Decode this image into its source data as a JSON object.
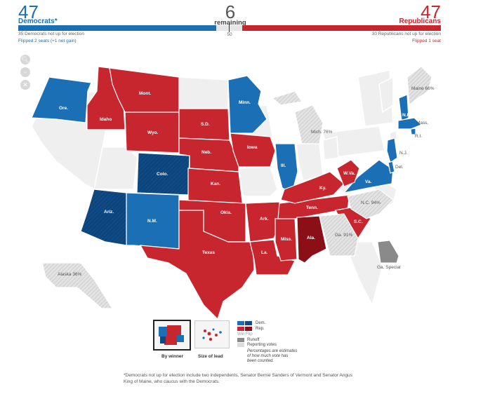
{
  "header": {
    "dem_count": "47",
    "dem_label": "Democrats*",
    "remaining_count": "6",
    "remaining_label": "remaining",
    "rep_count": "47",
    "rep_label": "Republicans",
    "dem_note": "35 Democrats not up for election",
    "rep_note": "30 Republicans not up for election",
    "midpoint": "50",
    "dem_flip": "Flipped 2 seats (+1 net gain)",
    "rep_flip": "Flipped 1 seat"
  },
  "colors": {
    "dem": "#1a6fb5",
    "dem_flip": "#0f4a85",
    "rep": "#c8262f",
    "rep_flip": "#8a0f16",
    "reporting": "#dcdcdc",
    "no_race": "#efefef",
    "runoff": "#8a8a8a"
  },
  "zoom_icons": [
    "zoom-in-icon",
    "zoom-out-icon",
    "reset-icon"
  ],
  "states": [
    {
      "id": "ore",
      "label": "Ore.",
      "status": "dem"
    },
    {
      "id": "idaho",
      "label": "Idaho",
      "status": "rep"
    },
    {
      "id": "mont",
      "label": "Mont.",
      "status": "rep"
    },
    {
      "id": "wyo",
      "label": "Wyo.",
      "status": "rep"
    },
    {
      "id": "sd",
      "label": "S.D.",
      "status": "rep"
    },
    {
      "id": "neb",
      "label": "Neb.",
      "status": "rep"
    },
    {
      "id": "minn",
      "label": "Minn.",
      "status": "dem"
    },
    {
      "id": "iowa",
      "label": "Iowa",
      "status": "rep"
    },
    {
      "id": "ill",
      "label": "Ill.",
      "status": "dem"
    },
    {
      "id": "colo",
      "label": "Colo.",
      "status": "dem_flip"
    },
    {
      "id": "kan",
      "label": "Kan.",
      "status": "rep"
    },
    {
      "id": "ariz",
      "label": "Ariz.",
      "status": "dem_flip"
    },
    {
      "id": "nm",
      "label": "N.M.",
      "status": "dem"
    },
    {
      "id": "okla",
      "label": "Okla.",
      "status": "rep"
    },
    {
      "id": "texas",
      "label": "Texas",
      "status": "rep"
    },
    {
      "id": "ark",
      "label": "Ark.",
      "status": "rep"
    },
    {
      "id": "la",
      "label": "La.",
      "status": "rep"
    },
    {
      "id": "miss",
      "label": "Miss.",
      "status": "rep"
    },
    {
      "id": "ala",
      "label": "Ala.",
      "status": "rep_flip"
    },
    {
      "id": "tenn",
      "label": "Tenn.",
      "status": "rep"
    },
    {
      "id": "ky",
      "label": "Ky.",
      "status": "rep"
    },
    {
      "id": "wva",
      "label": "W.Va.",
      "status": "rep"
    },
    {
      "id": "va",
      "label": "Va.",
      "status": "dem"
    },
    {
      "id": "sc",
      "label": "S.C.",
      "status": "rep"
    },
    {
      "id": "nc",
      "label": "N.C. 94%",
      "status": "reporting"
    },
    {
      "id": "ga",
      "label": "Ga. 91%",
      "status": "reporting"
    },
    {
      "id": "ga_special",
      "label": "Ga. Special",
      "status": "runoff"
    },
    {
      "id": "mich",
      "label": "Mich. 76%",
      "status": "reporting"
    },
    {
      "id": "maine",
      "label": "Maine 66%",
      "status": "reporting"
    },
    {
      "id": "nh",
      "label": "N.H.",
      "status": "dem"
    },
    {
      "id": "mass",
      "label": "Mass.",
      "status": "dem"
    },
    {
      "id": "ri",
      "label": "R.I.",
      "status": "dem"
    },
    {
      "id": "nj",
      "label": "N.J.",
      "status": "dem"
    },
    {
      "id": "del",
      "label": "Del.",
      "status": "dem"
    },
    {
      "id": "alaska",
      "label": "Alaska 36%",
      "status": "reporting"
    }
  ],
  "view_toggle": {
    "by_winner": "By winner",
    "size_of_lead": "Size of lead"
  },
  "legend": {
    "dem": "Dem.",
    "rep": "Rep.",
    "win": "Win",
    "flip": "Flip",
    "runoff": "Runoff",
    "reporting": "Reporting votes",
    "note": "Percentages are estimates of how much vote has been counted."
  },
  "footnote": "*Democrats not up for election include two independents, Senator Bernie Sanders of Vermont and Senator Angus King of Maine, who caucus with the Democrats."
}
